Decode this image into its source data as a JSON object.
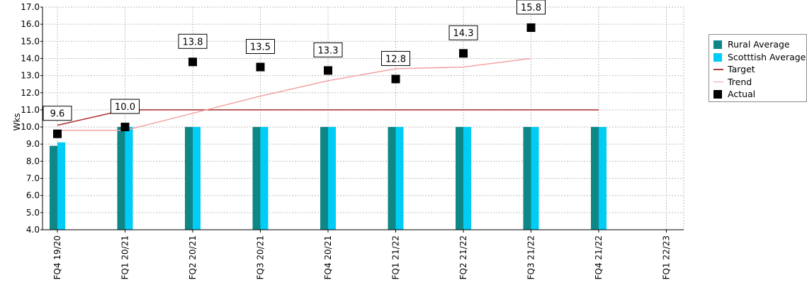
{
  "chart_data": {
    "type": "bar",
    "categories": [
      "FQ4 19/20",
      "FQ1 20/21",
      "FQ2 20/21",
      "FQ3 20/21",
      "FQ4 20/21",
      "FQ1 21/22",
      "FQ2 21/22",
      "FQ3 21/22",
      "FQ4 21/22",
      "FQ1 22/23"
    ],
    "ylabel": "Wks",
    "ylim": [
      4.0,
      17.0
    ],
    "yticks": [
      "4.0",
      "5.0",
      "6.0",
      "7.0",
      "8.0",
      "9.0",
      "10.0",
      "11.0",
      "12.0",
      "13.0",
      "14.0",
      "15.0",
      "16.0",
      "17.0"
    ],
    "grid": true,
    "legend_position": "right",
    "series": [
      {
        "name": "Rural Average",
        "type": "bar",
        "color": "#0f8787",
        "values": [
          8.9,
          10.0,
          10.0,
          10.0,
          10.0,
          10.0,
          10.0,
          10.0,
          10.0,
          null
        ]
      },
      {
        "name": "Scotttish Average",
        "type": "bar",
        "color": "#00ccf5",
        "values": [
          9.1,
          10.0,
          10.0,
          10.0,
          10.0,
          10.0,
          10.0,
          10.0,
          10.0,
          null
        ]
      },
      {
        "name": "Target",
        "type": "line",
        "color": "#b03a3a",
        "values": [
          10.1,
          11.0,
          11.0,
          11.0,
          11.0,
          11.0,
          11.0,
          11.0,
          11.0,
          null
        ]
      },
      {
        "name": "Trend",
        "type": "line",
        "color": "#f39c9c",
        "values": [
          9.8,
          9.8,
          10.8,
          11.8,
          12.7,
          13.4,
          13.5,
          14.0,
          null,
          null
        ]
      },
      {
        "name": "Actual",
        "type": "scatter",
        "color": "#000000",
        "values": [
          9.6,
          10.0,
          13.8,
          13.5,
          13.3,
          12.8,
          14.3,
          15.8,
          null,
          null
        ],
        "labels": [
          "9.6",
          "10.0",
          "13.8",
          "13.5",
          "13.3",
          "12.8",
          "14.3",
          "15.8",
          null,
          null
        ]
      }
    ]
  }
}
